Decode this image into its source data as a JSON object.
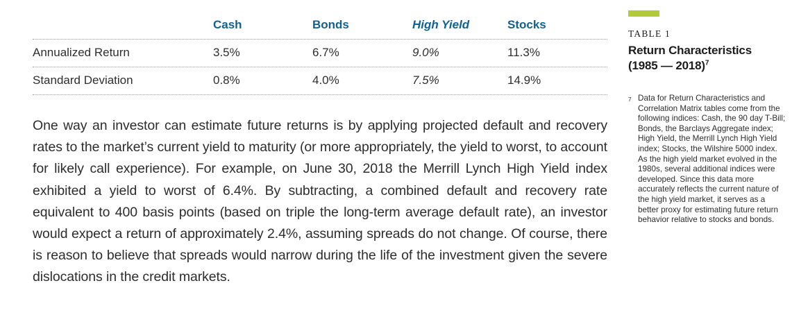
{
  "table": {
    "columns": [
      "Cash",
      "Bonds",
      "High Yield",
      "Stocks"
    ],
    "rows": [
      {
        "label": "Annualized Return",
        "values": [
          "3.5%",
          "6.7%",
          "9.0%",
          "11.3%"
        ]
      },
      {
        "label": "Standard Deviation",
        "values": [
          "0.8%",
          "4.0%",
          "7.5%",
          "14.9%"
        ]
      }
    ]
  },
  "body": {
    "paragraph": "One way an investor can estimate future returns is by applying projected default and recovery rates to the market’s current yield to maturity (or more appropriately, the yield to worst, to account for likely call experience).  For example, on June 30, 2018 the Merrill Lynch High Yield index exhibited a yield to worst of 6.4%.  By subtracting, a combined default and recovery rate equivalent to 400 basis points (based on triple the long-term average default rate), an investor would expect a return of approximately 2.4%, assuming spreads do not change.  Of course, there is reason to believe that spreads would narrow during the life of the investment given the severe dislocations in the credit markets."
  },
  "sidebar": {
    "table_label": "TABLE 1",
    "title_line1": "Return Characteristics",
    "title_line2": "(1985 — 2018)",
    "title_footnote_ref": "7",
    "footnote_marker": "7",
    "footnote_text": "Data for Return Characteristics and Correlation Matrix tables come from the following indices:  Cash, the 90 day T-Bill; Bonds, the Barclays Aggregate index; High Yield, the Merrill Lynch High Yield index; Stocks, the Wilshire 5000 index.  As the high yield market evolved in the 1980s, several additional indices were developed.  Since this data more accurately reflects the current nature of the high yield market, it serves as a better proxy for estimating future return behavior relative to stocks and bonds."
  },
  "colors": {
    "header_blue": "#0f6292",
    "accent_green": "#b2ca3a",
    "text_dark": "#2d2d2d",
    "rule_gray": "#9b9b9b"
  }
}
